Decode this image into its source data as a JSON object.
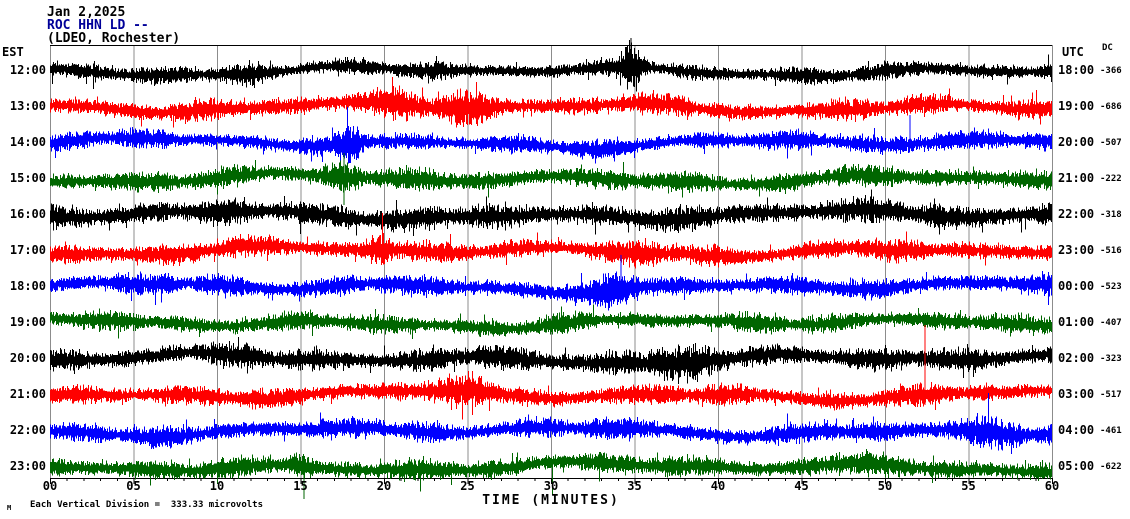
{
  "header": {
    "date": "Jan 2,2025",
    "station": "ROC HHN LD --",
    "location": "(LDEO, Rochester)"
  },
  "axes": {
    "left_label": "EST",
    "right_label": "UTC",
    "dc_label": "DC",
    "x_title": "TIME (MINUTES)",
    "x_ticks": [
      "00",
      "05",
      "10",
      "15",
      "20",
      "25",
      "30",
      "35",
      "40",
      "45",
      "50",
      "55",
      "60"
    ],
    "footnote": "Each Vertical Division =  333.33 microvolts",
    "corner_glyph": "M"
  },
  "colors": {
    "black": "#000000",
    "red": "#ff0000",
    "blue": "#0000ff",
    "green": "#006600",
    "grid": "#8c8c8c",
    "border": "#000000",
    "station_line": "#000099"
  },
  "chart_data": {
    "type": "helicorder-seismogram",
    "title": "ROC HHN LD -- (LDEO, Rochester) Jan 2,2025",
    "x_range_minutes": [
      0,
      60
    ],
    "minutes_per_line": 60,
    "vertical_division_microvolts": 333.33,
    "grid_interval_minutes": 5,
    "rows": [
      {
        "est": "12:00",
        "utc": "18:00",
        "dc": "-366",
        "color": "black",
        "seed": 101,
        "amp": 9,
        "bursts": [
          {
            "m": 2,
            "w": 1.2,
            "g": 1.5
          },
          {
            "m": 12,
            "w": 0.8,
            "g": 1.6
          },
          {
            "m": 34.8,
            "w": 0.4,
            "g": 3.0
          }
        ],
        "spikes": [
          {
            "m": 34.8,
            "up": 33,
            "dn": 6
          }
        ]
      },
      {
        "est": "13:00",
        "utc": "19:00",
        "dc": "-686",
        "color": "red",
        "seed": 202,
        "amp": 11,
        "bursts": [
          {
            "m": 21,
            "w": 2,
            "g": 1.5
          },
          {
            "m": 25,
            "w": 1,
            "g": 1.7
          }
        ],
        "spikes": [
          {
            "m": 20.5,
            "up": 30,
            "dn": 8
          }
        ]
      },
      {
        "est": "14:00",
        "utc": "20:00",
        "dc": "-507",
        "color": "blue",
        "seed": 303,
        "amp": 10,
        "bursts": [
          {
            "m": 18,
            "w": 0.6,
            "g": 2.0
          },
          {
            "m": 51,
            "w": 1.5,
            "g": 1.4
          }
        ],
        "spikes": [
          {
            "m": 17.8,
            "up": 36,
            "dn": 10
          },
          {
            "m": 51.5,
            "up": 28,
            "dn": 6
          }
        ]
      },
      {
        "est": "15:00",
        "utc": "21:00",
        "dc": "-222",
        "color": "green",
        "seed": 404,
        "amp": 11,
        "bursts": [
          {
            "m": 17.5,
            "w": 0.8,
            "g": 1.8
          }
        ],
        "spikes": [
          {
            "m": 17.6,
            "up": 26,
            "dn": 26
          }
        ]
      },
      {
        "est": "16:00",
        "utc": "22:00",
        "dc": "-318",
        "color": "black",
        "seed": 505,
        "amp": 13,
        "bursts": [
          {
            "m": 17,
            "w": 1,
            "g": 1.4
          }
        ],
        "spikes": []
      },
      {
        "est": "17:00",
        "utc": "23:00",
        "dc": "-516",
        "color": "red",
        "seed": 606,
        "amp": 11,
        "bursts": [
          {
            "m": 19.8,
            "w": 0.5,
            "g": 2.2
          },
          {
            "m": 36,
            "w": 1.5,
            "g": 1.35
          }
        ],
        "spikes": [
          {
            "m": 19.9,
            "up": 38,
            "dn": 10
          }
        ]
      },
      {
        "est": "18:00",
        "utc": "00:00",
        "dc": "-523",
        "color": "blue",
        "seed": 707,
        "amp": 11,
        "bursts": [
          {
            "m": 34,
            "w": 1.2,
            "g": 1.7
          }
        ],
        "spikes": [
          {
            "m": 34.2,
            "up": 32,
            "dn": 12
          }
        ]
      },
      {
        "est": "19:00",
        "utc": "01:00",
        "dc": "-407",
        "color": "green",
        "seed": 808,
        "amp": 10,
        "bursts": [],
        "spikes": []
      },
      {
        "est": "20:00",
        "utc": "02:00",
        "dc": "-323",
        "color": "black",
        "seed": 909,
        "amp": 12,
        "bursts": [
          {
            "m": 36.5,
            "w": 2.5,
            "g": 1.55
          }
        ],
        "spikes": []
      },
      {
        "est": "21:00",
        "utc": "03:00",
        "dc": "-517",
        "color": "red",
        "seed": 111,
        "amp": 11,
        "bursts": [
          {
            "m": 25,
            "w": 1.5,
            "g": 1.5
          }
        ],
        "spikes": [
          {
            "m": 25.3,
            "up": 24,
            "dn": 20
          },
          {
            "m": 52.4,
            "up": 70,
            "dn": 10
          }
        ]
      },
      {
        "est": "22:00",
        "utc": "04:00",
        "dc": "-461",
        "color": "blue",
        "seed": 222,
        "amp": 11,
        "bursts": [
          {
            "m": 56,
            "w": 1.8,
            "g": 1.6
          }
        ],
        "spikes": [
          {
            "m": 56.2,
            "up": 38,
            "dn": 12
          }
        ]
      },
      {
        "est": "23:00",
        "utc": "05:00",
        "dc": "-622",
        "color": "green",
        "seed": 333,
        "amp": 11,
        "bursts": [
          {
            "m": 15,
            "w": 0.6,
            "g": 1.7
          },
          {
            "m": 47,
            "w": 1,
            "g": 1.45
          }
        ],
        "spikes": [
          {
            "m": 15.2,
            "up": 10,
            "dn": 32
          },
          {
            "m": 30.1,
            "up": 8,
            "dn": 28
          }
        ]
      }
    ]
  }
}
